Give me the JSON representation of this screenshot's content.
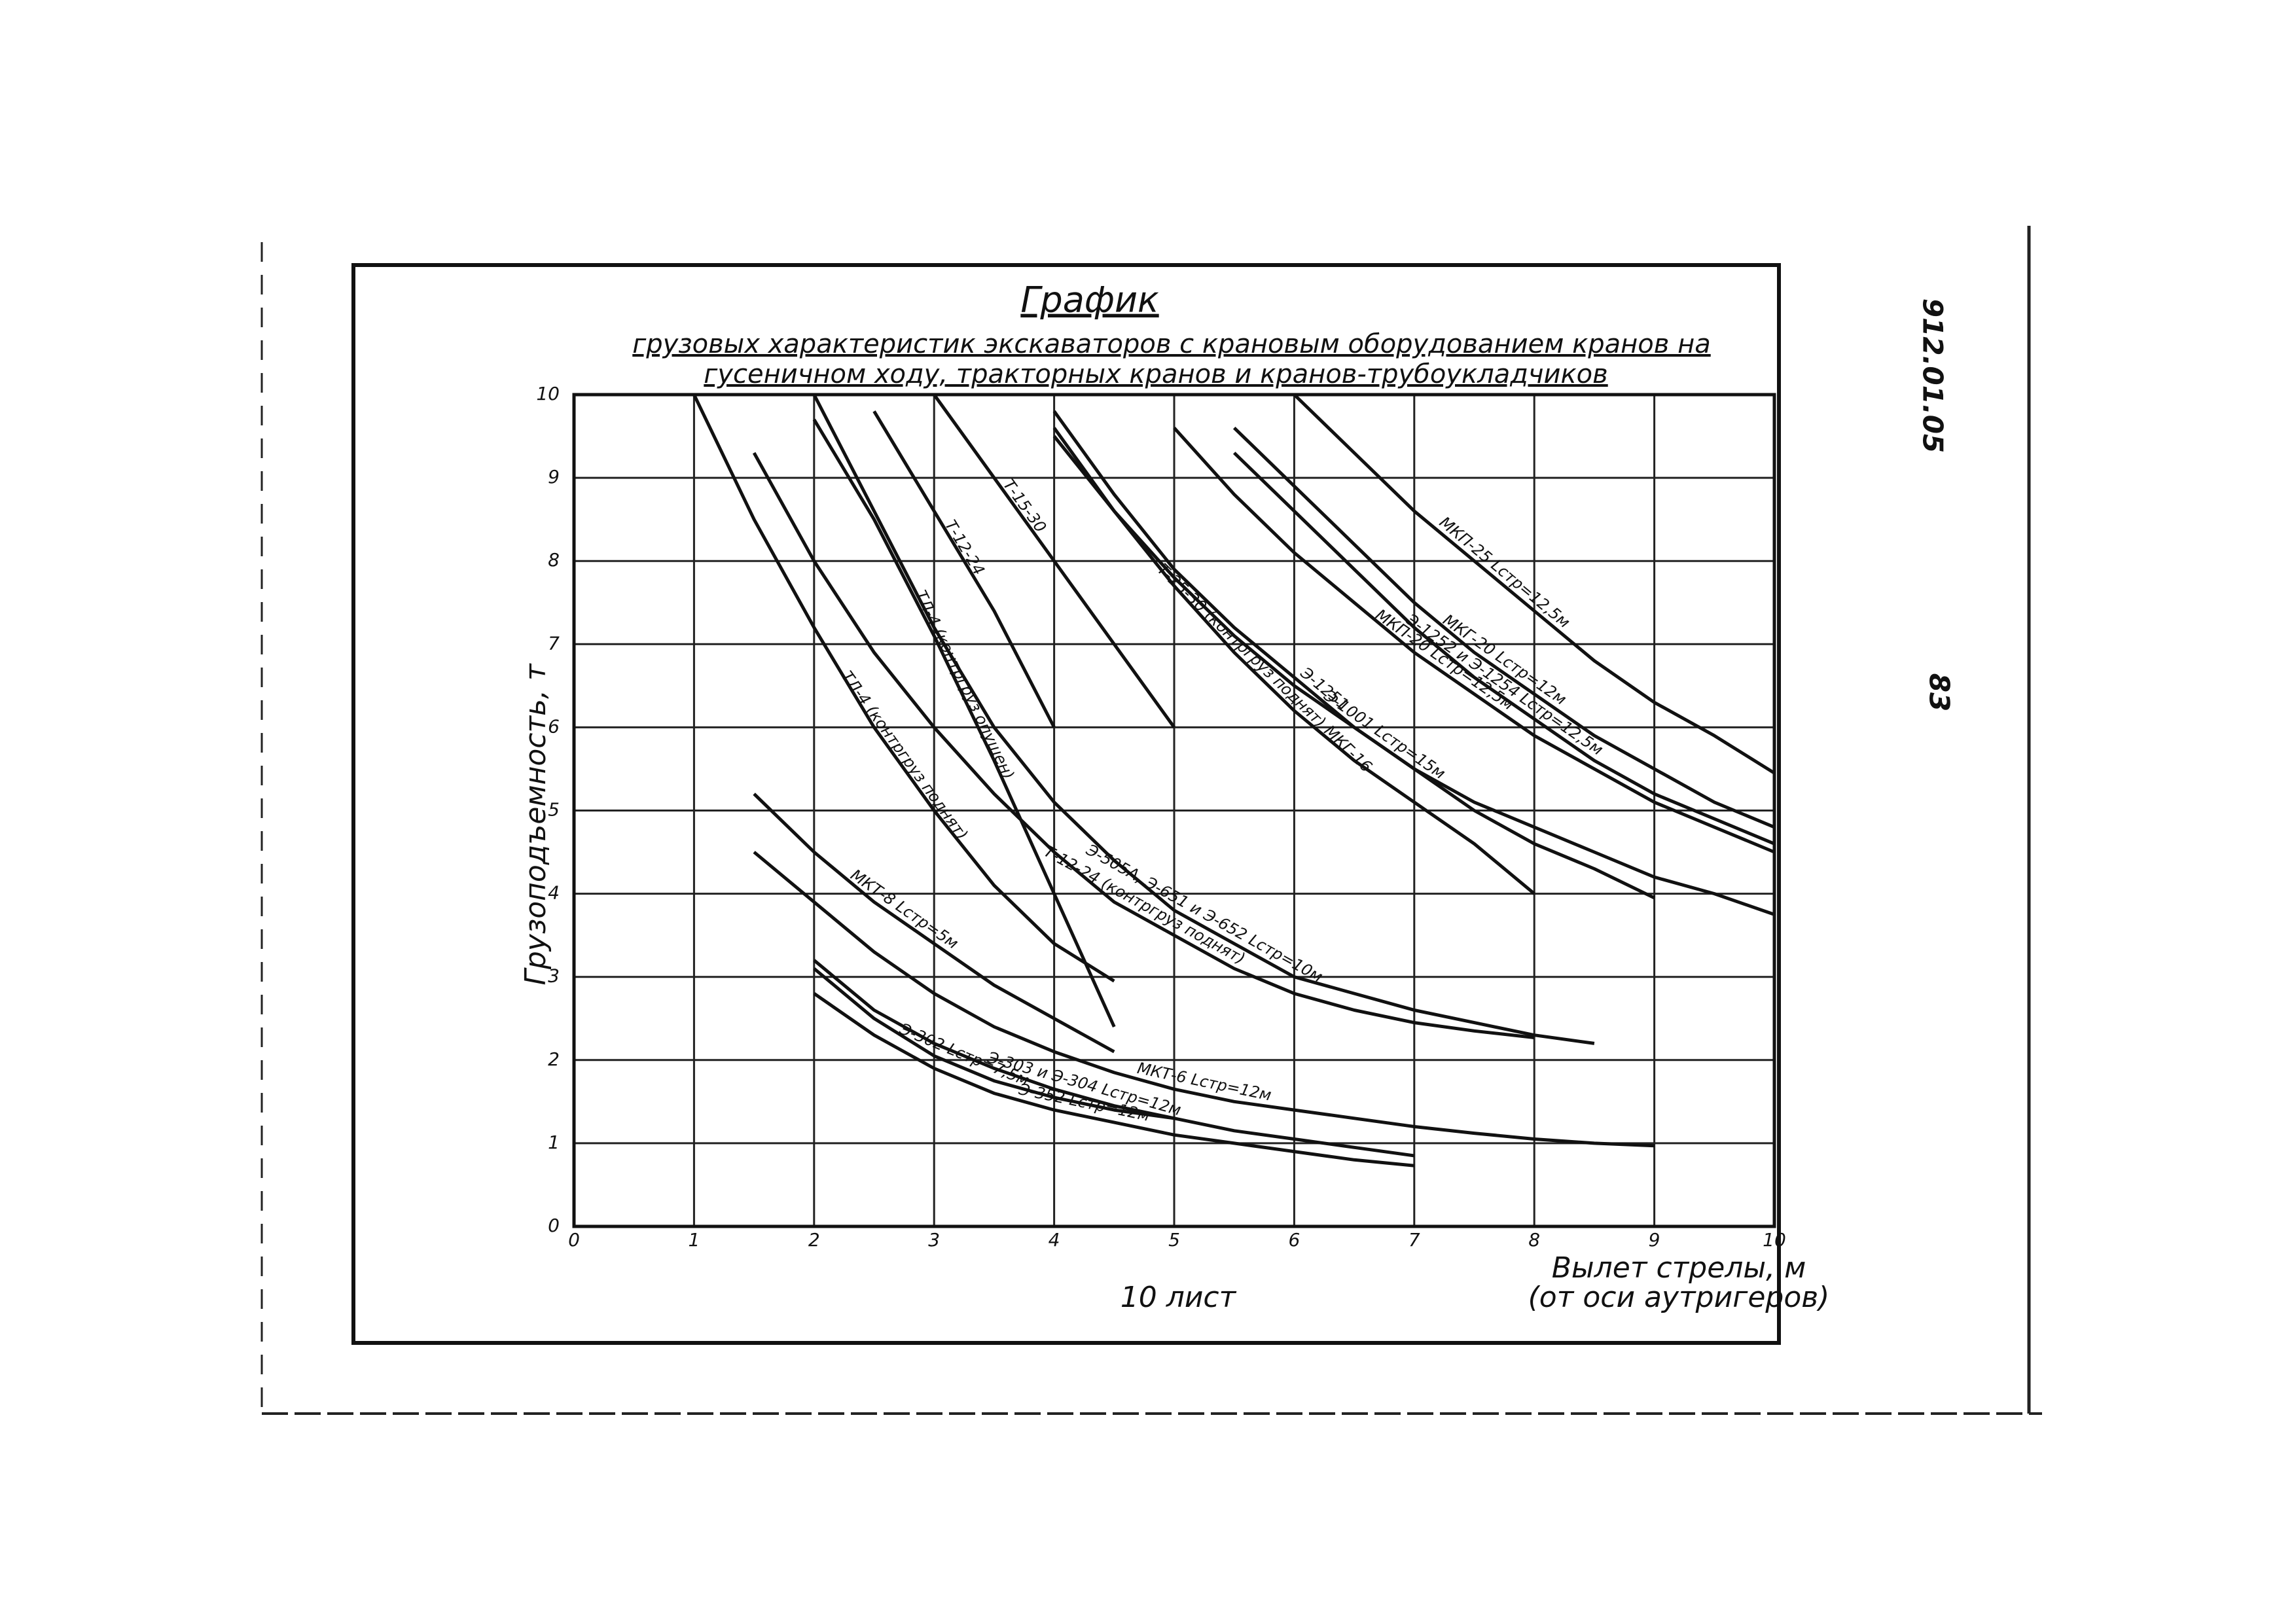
{
  "chart_data": {
    "type": "line",
    "title": "График",
    "subtitle": [
      "грузовых характеристик экскаваторов с крановым оборудованием кранов на",
      "гусеничном ходу, тракторных кранов и кранов-трубоукладчиков"
    ],
    "y_label": "Грузоподъемность, т",
    "x_label": [
      "Вылет стрелы, м",
      "(от оси аутригеров)"
    ],
    "annotations": [
      "10 лист",
      "912.01.05",
      "83"
    ],
    "xlim": [
      0,
      10
    ],
    "ylim": [
      0,
      10
    ],
    "xticks": [
      0,
      1,
      2,
      3,
      4,
      5,
      6,
      7,
      8,
      9,
      10
    ],
    "yticks": [
      0,
      1,
      2,
      3,
      4,
      5,
      6,
      7,
      8,
      9,
      10
    ],
    "grid": true,
    "x": [
      1,
      1.5,
      2,
      2.5,
      3,
      3.5,
      4,
      4.5,
      5,
      5.5,
      6,
      6.5,
      7,
      7.5,
      8,
      8.5,
      9,
      9.5,
      10
    ],
    "series": [
      {
        "name": "МКП-25 Lстр=12,5м",
        "color": "#111111",
        "values": [
          null,
          null,
          null,
          null,
          null,
          null,
          null,
          null,
          null,
          null,
          10,
          9.3,
          8.6,
          8.0,
          7.4,
          6.8,
          6.3,
          5.9,
          5.45
        ]
      },
      {
        "name": "МКГ-20 Lстр=12м",
        "color": "#111111",
        "values": [
          null,
          null,
          null,
          null,
          null,
          null,
          null,
          null,
          null,
          9.6,
          8.9,
          8.2,
          7.5,
          6.9,
          6.4,
          5.9,
          5.5,
          5.1,
          4.8
        ]
      },
      {
        "name": "Э-1252 и Э-1254 Lстр=12,5м",
        "color": "#111111",
        "values": [
          null,
          null,
          null,
          null,
          null,
          null,
          null,
          null,
          null,
          9.3,
          8.6,
          7.9,
          7.2,
          6.6,
          6.1,
          5.6,
          5.2,
          4.9,
          4.6
        ]
      },
      {
        "name": "МКП-20 Lстр=12,5м",
        "color": "#111111",
        "values": [
          null,
          null,
          null,
          null,
          null,
          null,
          null,
          null,
          9.6,
          8.8,
          8.1,
          7.5,
          6.9,
          6.4,
          5.9,
          5.5,
          5.1,
          4.8,
          4.5
        ]
      },
      {
        "name": "Э-1001 Lстр=15м",
        "color": "#111111",
        "values": [
          null,
          null,
          null,
          null,
          null,
          null,
          9.5,
          8.6,
          7.8,
          7.1,
          6.5,
          6.0,
          5.5,
          5.1,
          4.8,
          4.5,
          4.2,
          4.0,
          3.75
        ]
      },
      {
        "name": "Э-1251",
        "color": "#111111",
        "values": [
          null,
          null,
          null,
          null,
          null,
          null,
          9.8,
          8.8,
          7.9,
          7.2,
          6.6,
          6.0,
          5.5,
          5.0,
          4.6,
          4.3,
          3.95,
          null,
          null
        ]
      },
      {
        "name": "Т-25-30 (контргруз поднят) МКГ-16",
        "color": "#111111",
        "values": [
          null,
          null,
          null,
          null,
          null,
          null,
          9.6,
          8.6,
          7.7,
          6.9,
          6.2,
          5.6,
          5.1,
          4.6,
          4.0,
          null,
          null,
          null,
          null
        ]
      },
      {
        "name": "Т-15-30",
        "color": "#111111",
        "values": [
          null,
          null,
          null,
          null,
          10,
          9.0,
          8.0,
          7.0,
          6.0,
          null,
          null,
          null,
          null,
          null,
          null,
          null,
          null,
          null,
          null
        ]
      },
      {
        "name": "Т-12-24",
        "color": "#111111",
        "values": [
          null,
          null,
          null,
          9.8,
          8.6,
          7.4,
          6.0,
          null,
          null,
          null,
          null,
          null,
          null,
          null,
          null,
          null,
          null,
          null,
          null
        ]
      },
      {
        "name": "Э-505А, Э-651 и Э-652 Lстр=10м",
        "color": "#111111",
        "values": [
          null,
          null,
          10,
          8.6,
          7.2,
          6.0,
          5.1,
          4.4,
          3.8,
          3.4,
          3.0,
          2.8,
          2.6,
          2.45,
          2.3,
          2.2,
          null,
          null,
          null
        ]
      },
      {
        "name": "ТЛ-4 (контргруз опущен)",
        "color": "#111111",
        "values": [
          null,
          null,
          9.7,
          8.5,
          7.1,
          5.6,
          4.0,
          2.4,
          null,
          null,
          null,
          null,
          null,
          null,
          null,
          null,
          null,
          null,
          null
        ]
      },
      {
        "name": "Т-12-24 (контргруз поднят)",
        "color": "#111111",
        "values": [
          null,
          9.3,
          8.0,
          6.9,
          6.0,
          5.2,
          4.5,
          3.9,
          3.5,
          3.1,
          2.8,
          2.6,
          2.45,
          2.35,
          2.27,
          null,
          null,
          null,
          null
        ]
      },
      {
        "name": "ТЛ-4 (контргруз поднят)",
        "color": "#111111",
        "values": [
          10,
          8.5,
          7.2,
          6.0,
          5.0,
          4.1,
          3.4,
          2.95,
          null,
          null,
          null,
          null,
          null,
          null,
          null,
          null,
          null,
          null,
          null
        ]
      },
      {
        "name": "МКТ-8 Lстр=5м",
        "color": "#111111",
        "values": [
          null,
          5.2,
          4.5,
          3.9,
          3.4,
          2.9,
          2.5,
          2.1,
          null,
          null,
          null,
          null,
          null,
          null,
          null,
          null,
          null,
          null,
          null
        ]
      },
      {
        "name": "МКТ-6 Lстр=12м",
        "color": "#111111",
        "values": [
          null,
          4.5,
          3.9,
          3.3,
          2.8,
          2.4,
          2.1,
          1.85,
          1.65,
          1.5,
          1.4,
          1.3,
          1.2,
          1.12,
          1.05,
          1.0,
          0.97,
          null,
          null
        ]
      },
      {
        "name": "Э-303 и Э-304 Lстр=12м",
        "color": "#111111",
        "values": [
          null,
          null,
          3.2,
          2.6,
          2.2,
          1.9,
          1.65,
          1.45,
          1.3,
          1.15,
          1.05,
          0.95,
          0.85,
          null,
          null,
          null,
          null,
          null,
          null
        ]
      },
      {
        "name": "Э-302 Lстр=7,5м",
        "color": "#111111",
        "values": [
          null,
          null,
          3.1,
          2.5,
          2.05,
          1.75,
          1.55,
          1.4,
          1.3,
          null,
          null,
          null,
          null,
          null,
          null,
          null,
          null,
          null,
          null
        ]
      },
      {
        "name": "Э-352 Lстр=12м",
        "color": "#111111",
        "values": [
          null,
          null,
          2.8,
          2.3,
          1.9,
          1.6,
          1.4,
          1.25,
          1.1,
          1.0,
          0.9,
          0.8,
          0.73,
          null,
          null,
          null,
          null,
          null,
          null
        ]
      }
    ]
  }
}
